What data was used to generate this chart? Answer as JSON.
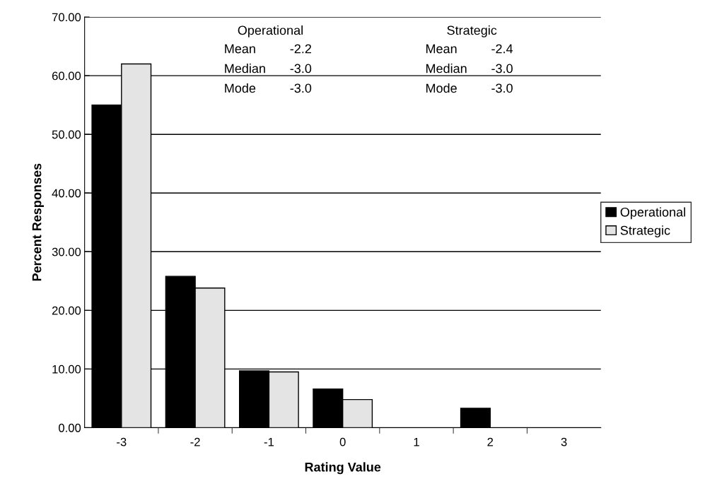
{
  "chart_data": {
    "type": "bar",
    "xlabel": "Rating Value",
    "ylabel": "Percent Responses",
    "categories": [
      "-3",
      "-2",
      "-1",
      "0",
      "1",
      "2",
      "3"
    ],
    "series": [
      {
        "name": "Operational",
        "color": "#000000",
        "values": [
          55,
          25.8,
          9.7,
          6.6,
          0,
          3.3,
          0
        ]
      },
      {
        "name": "Strategic",
        "color": "#e4e4e4",
        "values": [
          62,
          23.8,
          9.5,
          4.8,
          0,
          0,
          0
        ]
      }
    ],
    "ylim": [
      0,
      70
    ],
    "yticks": [
      {
        "value": 0,
        "label": "0.00"
      },
      {
        "value": 10,
        "label": "10.00"
      },
      {
        "value": 20,
        "label": "20.00"
      },
      {
        "value": 30,
        "label": "30.00"
      },
      {
        "value": 40,
        "label": "40.00"
      },
      {
        "value": 50,
        "label": "50.00"
      },
      {
        "value": 60,
        "label": "60.00"
      },
      {
        "value": 70,
        "label": "70.00"
      }
    ],
    "grid": "y",
    "legend": "right",
    "annotations": [
      "Operational",
      "Mean",
      "-2.2",
      "Median",
      "-3.0",
      "Mode",
      "-3.0",
      "Strategic",
      "Mean",
      "-2.4",
      "Median",
      "-3.0",
      "Mode",
      "-3.0"
    ]
  }
}
